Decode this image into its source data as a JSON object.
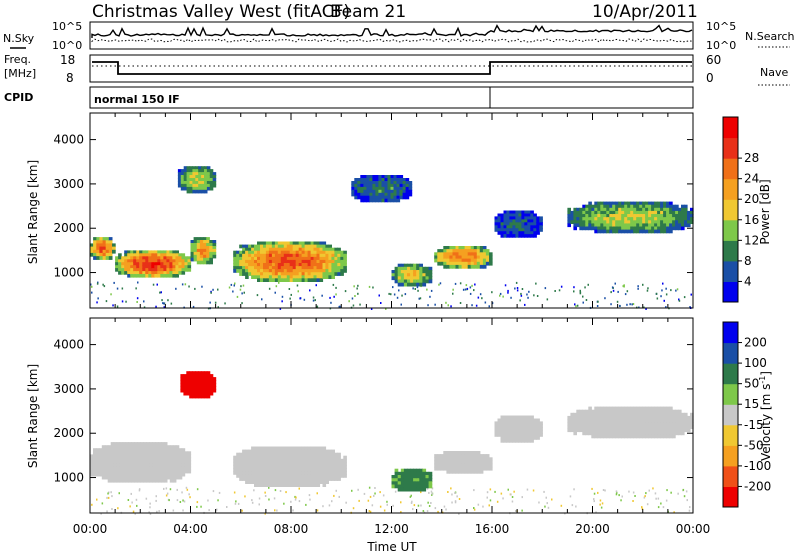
{
  "header": {
    "station": "Christmas Valley West (fitACF)",
    "beam": "Beam 21",
    "date": "10/Apr/2011"
  },
  "top_panels": {
    "nsky_label": "N.Sky",
    "nsky_ticks": [
      "10^5",
      "10^0"
    ],
    "nsearch_label": "N.Search",
    "nsearch_ticks": [
      "10^5",
      "10^0"
    ],
    "freq_label_1": "Freq.",
    "freq_label_2": "[MHz]",
    "freq_ticks": [
      "18",
      "8"
    ],
    "nave_label": "Nave",
    "nave_ticks": [
      "60",
      "0"
    ],
    "cpid_label": "CPID",
    "cpid_value": "normal 150 IF"
  },
  "colors": {
    "power_scale": [
      "#0000ee",
      "#1a4fa6",
      "#2e7a4a",
      "#7ec84a",
      "#f0c832",
      "#f5a020",
      "#f07018",
      "#e83018",
      "#ee0000"
    ],
    "velocity_scale": [
      "#ee0000",
      "#f05018",
      "#f5a020",
      "#f0c832",
      "#c8c8c8",
      "#c8c8c8",
      "#7ec84a",
      "#2e7a4a",
      "#1a4fa6",
      "#0000ee"
    ]
  },
  "chart_data": [
    {
      "type": "heatmap",
      "title": "",
      "xlabel": "",
      "ylabel": "Slant Range [km]",
      "x_ticks": [
        "00:00",
        "04:00",
        "08:00",
        "12:00",
        "16:00",
        "20:00",
        "00:00"
      ],
      "y_ticks": [
        1000,
        2000,
        3000,
        4000
      ],
      "ylim": [
        200,
        4600
      ],
      "xlim_hours": [
        0,
        24
      ],
      "colorbar": {
        "label": "Power [dB]",
        "ticks": [
          4,
          8,
          12,
          16,
          20,
          24,
          28
        ],
        "range": [
          0,
          32
        ]
      },
      "regions": [
        {
          "t0": 0.0,
          "t1": 1.0,
          "r0": 1300,
          "r1": 1800,
          "value": 24
        },
        {
          "t0": 1.0,
          "t1": 4.0,
          "r0": 900,
          "r1": 1500,
          "value": 26
        },
        {
          "t0": 4.0,
          "t1": 5.0,
          "r0": 1200,
          "r1": 1800,
          "value": 20
        },
        {
          "t0": 3.5,
          "t1": 5.0,
          "r0": 2800,
          "r1": 3400,
          "value": 14
        },
        {
          "t0": 5.7,
          "t1": 10.2,
          "r0": 800,
          "r1": 1700,
          "value": 24
        },
        {
          "t0": 10.4,
          "t1": 12.8,
          "r0": 2600,
          "r1": 3200,
          "value": 8
        },
        {
          "t0": 12.0,
          "t1": 13.6,
          "r0": 700,
          "r1": 1200,
          "value": 16
        },
        {
          "t0": 13.7,
          "t1": 16.0,
          "r0": 1100,
          "r1": 1600,
          "value": 22
        },
        {
          "t0": 16.1,
          "t1": 18.0,
          "r0": 1800,
          "r1": 2400,
          "value": 6
        },
        {
          "t0": 19.0,
          "t1": 24.0,
          "r0": 1900,
          "r1": 2600,
          "value": 14
        }
      ]
    },
    {
      "type": "heatmap",
      "title": "",
      "xlabel": "Time UT",
      "ylabel": "Slant Range [km]",
      "x_ticks": [
        "00:00",
        "04:00",
        "08:00",
        "12:00",
        "16:00",
        "20:00",
        "00:00"
      ],
      "y_ticks": [
        1000,
        2000,
        3000,
        4000
      ],
      "ylim": [
        200,
        4600
      ],
      "xlim_hours": [
        0,
        24
      ],
      "colorbar": {
        "label": "Velocity [m s",
        "label_sup": "-1",
        "label_end": "]",
        "ticks": [
          -200,
          -100,
          -50,
          -15,
          15,
          50,
          100,
          200
        ]
      },
      "regions": [
        {
          "t0": 0.0,
          "t1": 4.0,
          "r0": 900,
          "r1": 1800,
          "value": 0
        },
        {
          "t0": 3.6,
          "t1": 5.0,
          "r0": 2800,
          "r1": 3400,
          "value": -200
        },
        {
          "t0": 5.7,
          "t1": 10.2,
          "r0": 800,
          "r1": 1700,
          "value": 0
        },
        {
          "t0": 12.0,
          "t1": 13.6,
          "r0": 700,
          "r1": 1200,
          "value": 60
        },
        {
          "t0": 13.7,
          "t1": 16.0,
          "r0": 1100,
          "r1": 1600,
          "value": 0
        },
        {
          "t0": 16.1,
          "t1": 18.0,
          "r0": 1800,
          "r1": 2400,
          "value": 0
        },
        {
          "t0": 19.0,
          "t1": 24.0,
          "r0": 1900,
          "r1": 2600,
          "value": 0
        }
      ]
    }
  ]
}
